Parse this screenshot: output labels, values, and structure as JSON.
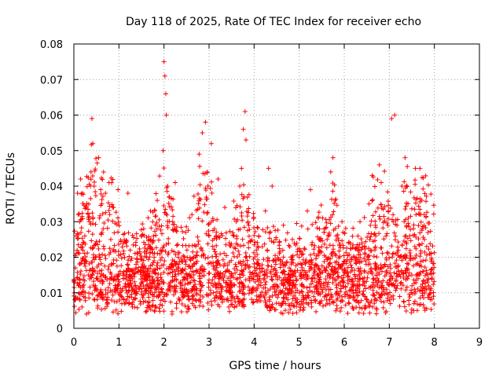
{
  "chart_data": {
    "type": "scatter",
    "title": "Day 118 of 2025, Rate Of TEC Index for receiver echo",
    "xlabel": "GPS time / hours",
    "ylabel": "ROTI / TECUs",
    "xlim": [
      0,
      9
    ],
    "ylim": [
      0,
      0.08
    ],
    "x_ticks": [
      0,
      1,
      2,
      3,
      4,
      5,
      6,
      7,
      8,
      9
    ],
    "x_tick_labels": [
      "0",
      "1",
      "2",
      "3",
      "4",
      "5",
      "6",
      "7",
      "8",
      "9"
    ],
    "y_ticks": [
      0,
      0.01,
      0.02,
      0.03,
      0.04,
      0.05,
      0.06,
      0.07,
      0.08
    ],
    "y_tick_labels": [
      "0",
      "0.01",
      "0.02",
      "0.03",
      "0.04",
      "0.05",
      "0.06",
      "0.07",
      "0.08"
    ],
    "grid": true,
    "marker": "plus",
    "marker_color": "#ff0000",
    "x_data_range": [
      0,
      8
    ],
    "series": [
      {
        "points": [
          [
            0.02,
            0.008
          ],
          [
            0.05,
            0.026
          ],
          [
            0.08,
            0.038
          ],
          [
            0.1,
            0.032
          ],
          [
            0.12,
            0.012
          ],
          [
            0.15,
            0.042
          ],
          [
            0.18,
            0.006
          ],
          [
            0.2,
            0.022
          ],
          [
            0.25,
            0.01
          ],
          [
            0.28,
            0.004
          ],
          [
            0.32,
            0.015
          ],
          [
            0.35,
            0.03
          ],
          [
            0.38,
            0.044
          ],
          [
            0.4,
            0.059
          ],
          [
            0.42,
            0.052
          ],
          [
            0.45,
            0.04
          ],
          [
            0.48,
            0.012
          ],
          [
            0.55,
            0.048
          ],
          [
            0.58,
            0.02
          ],
          [
            0.62,
            0.035
          ],
          [
            0.65,
            0.028
          ],
          [
            0.7,
            0.038
          ],
          [
            0.75,
            0.01
          ],
          [
            0.78,
            0.041
          ],
          [
            0.82,
            0.025
          ],
          [
            0.88,
            0.034
          ],
          [
            0.92,
            0.012
          ],
          [
            0.98,
            0.039
          ],
          [
            1.05,
            0.009
          ],
          [
            1.1,
            0.014
          ],
          [
            1.2,
            0.038
          ],
          [
            1.25,
            0.022
          ],
          [
            1.3,
            0.006
          ],
          [
            1.38,
            0.018
          ],
          [
            1.45,
            0.011
          ],
          [
            1.55,
            0.028
          ],
          [
            1.62,
            0.012
          ],
          [
            1.7,
            0.033
          ],
          [
            1.78,
            0.009
          ],
          [
            1.85,
            0.036
          ],
          [
            1.92,
            0.022
          ],
          [
            1.98,
            0.05
          ],
          [
            2.0,
            0.075
          ],
          [
            2.02,
            0.071
          ],
          [
            2.04,
            0.066
          ],
          [
            2.05,
            0.06
          ],
          [
            2.08,
            0.04
          ],
          [
            2.12,
            0.037
          ],
          [
            2.18,
            0.004
          ],
          [
            2.25,
            0.041
          ],
          [
            2.32,
            0.018
          ],
          [
            2.4,
            0.012
          ],
          [
            2.48,
            0.027
          ],
          [
            2.55,
            0.008
          ],
          [
            2.62,
            0.032
          ],
          [
            2.7,
            0.02
          ],
          [
            2.78,
            0.049
          ],
          [
            2.85,
            0.055
          ],
          [
            2.92,
            0.058
          ],
          [
            2.96,
            0.044
          ],
          [
            3.05,
            0.052
          ],
          [
            3.12,
            0.028
          ],
          [
            3.2,
            0.042
          ],
          [
            3.28,
            0.011
          ],
          [
            3.35,
            0.034
          ],
          [
            3.45,
            0.016
          ],
          [
            3.55,
            0.026
          ],
          [
            3.62,
            0.009
          ],
          [
            3.72,
            0.045
          ],
          [
            3.76,
            0.056
          ],
          [
            3.8,
            0.061
          ],
          [
            3.82,
            0.053
          ],
          [
            3.88,
            0.029
          ],
          [
            3.95,
            0.014
          ],
          [
            4.05,
            0.022
          ],
          [
            4.15,
            0.009
          ],
          [
            4.25,
            0.033
          ],
          [
            4.32,
            0.045
          ],
          [
            4.4,
            0.04
          ],
          [
            4.48,
            0.018
          ],
          [
            4.55,
            0.007
          ],
          [
            4.65,
            0.029
          ],
          [
            4.75,
            0.013
          ],
          [
            4.85,
            0.025
          ],
          [
            4.92,
            0.01
          ],
          [
            5.0,
            0.02
          ],
          [
            5.1,
            0.008
          ],
          [
            5.18,
            0.033
          ],
          [
            5.25,
            0.039
          ],
          [
            5.35,
            0.016
          ],
          [
            5.45,
            0.028
          ],
          [
            5.55,
            0.012
          ],
          [
            5.62,
            0.025
          ],
          [
            5.7,
            0.044
          ],
          [
            5.75,
            0.048
          ],
          [
            5.8,
            0.036
          ],
          [
            5.88,
            0.018
          ],
          [
            5.95,
            0.03
          ],
          [
            6.02,
            0.009
          ],
          [
            6.1,
            0.024
          ],
          [
            6.18,
            0.006
          ],
          [
            6.25,
            0.019
          ],
          [
            6.35,
            0.03
          ],
          [
            6.45,
            0.012
          ],
          [
            6.55,
            0.035
          ],
          [
            6.62,
            0.043
          ],
          [
            6.7,
            0.026
          ],
          [
            6.78,
            0.046
          ],
          [
            6.82,
            0.041
          ],
          [
            6.9,
            0.018
          ],
          [
            6.98,
            0.033
          ],
          [
            7.05,
            0.059
          ],
          [
            7.12,
            0.06
          ],
          [
            7.2,
            0.022
          ],
          [
            7.28,
            0.04
          ],
          [
            7.35,
            0.048
          ],
          [
            7.42,
            0.031
          ],
          [
            7.5,
            0.015
          ],
          [
            7.58,
            0.045
          ],
          [
            7.62,
            0.005
          ],
          [
            7.68,
            0.045
          ],
          [
            7.72,
            0.036
          ],
          [
            7.78,
            0.025
          ],
          [
            7.85,
            0.013
          ],
          [
            7.92,
            0.021
          ],
          [
            7.98,
            0.009
          ]
        ]
      }
    ]
  }
}
